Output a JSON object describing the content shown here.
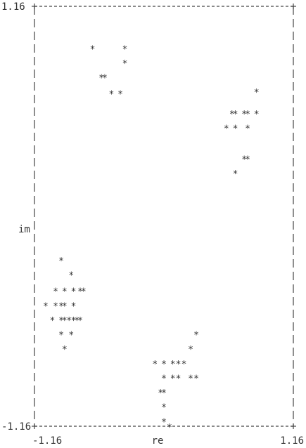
{
  "chart_data": {
    "type": "scatter",
    "title": "",
    "xlabel": "re",
    "ylabel": "im",
    "xlim": [
      -1.16,
      1.16
    ],
    "ylim": [
      -1.16,
      1.16
    ],
    "x_tick_labels": [
      "-1.16",
      "1.16"
    ],
    "y_tick_labels": [
      "-1.16",
      "1.16"
    ],
    "grid": false,
    "frame": "dashed",
    "marker": "*",
    "points": [
      [
        -0.64,
        0.93
      ],
      [
        -0.35,
        0.93
      ],
      [
        -0.35,
        0.85
      ],
      [
        -0.56,
        0.77
      ],
      [
        -0.53,
        0.77
      ],
      [
        -0.47,
        0.68
      ],
      [
        -0.39,
        0.68
      ],
      [
        0.83,
        0.69
      ],
      [
        0.61,
        0.57
      ],
      [
        0.64,
        0.57
      ],
      [
        0.72,
        0.57
      ],
      [
        0.75,
        0.57
      ],
      [
        0.83,
        0.57
      ],
      [
        0.56,
        0.49
      ],
      [
        0.64,
        0.49
      ],
      [
        0.75,
        0.49
      ],
      [
        0.72,
        0.32
      ],
      [
        0.75,
        0.32
      ],
      [
        0.64,
        0.24
      ],
      [
        -0.92,
        -0.24
      ],
      [
        -0.83,
        -0.32
      ],
      [
        -0.97,
        -0.41
      ],
      [
        -0.89,
        -0.41
      ],
      [
        -0.81,
        -0.41
      ],
      [
        -0.75,
        -0.41
      ],
      [
        -0.72,
        -0.41
      ],
      [
        -1.06,
        -0.49
      ],
      [
        -0.97,
        -0.49
      ],
      [
        -0.92,
        -0.49
      ],
      [
        -0.89,
        -0.49
      ],
      [
        -0.81,
        -0.49
      ],
      [
        -1.0,
        -0.57
      ],
      [
        -0.92,
        -0.57
      ],
      [
        -0.89,
        -0.57
      ],
      [
        -0.85,
        -0.57
      ],
      [
        -0.81,
        -0.57
      ],
      [
        -0.78,
        -0.57
      ],
      [
        -0.75,
        -0.57
      ],
      [
        -0.92,
        -0.65
      ],
      [
        -0.83,
        -0.65
      ],
      [
        -0.89,
        -0.73
      ],
      [
        0.29,
        -0.65
      ],
      [
        0.24,
        -0.73
      ],
      [
        -0.08,
        -0.81
      ],
      [
        0.0,
        -0.81
      ],
      [
        0.08,
        -0.81
      ],
      [
        0.13,
        -0.81
      ],
      [
        0.18,
        -0.81
      ],
      [
        0.0,
        -0.89
      ],
      [
        0.08,
        -0.89
      ],
      [
        0.13,
        -0.89
      ],
      [
        0.24,
        -0.89
      ],
      [
        0.29,
        -0.89
      ],
      [
        -0.03,
        -0.97
      ],
      [
        0.0,
        -0.97
      ],
      [
        0.0,
        -1.05
      ],
      [
        0.0,
        -1.13
      ],
      [
        0.05,
        -1.16
      ]
    ]
  }
}
